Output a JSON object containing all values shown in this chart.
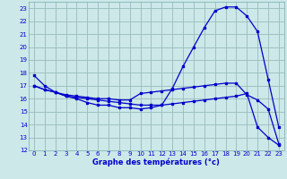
{
  "xlabel": "Graphe des températures (°c)",
  "bg_color": "#cce8e8",
  "line_color": "#0000cc",
  "grid_color": "#99bbbb",
  "xlim": [
    -0.5,
    23.5
  ],
  "ylim": [
    12,
    23.5
  ],
  "xticks": [
    0,
    1,
    2,
    3,
    4,
    5,
    6,
    7,
    8,
    9,
    10,
    11,
    12,
    13,
    14,
    15,
    16,
    17,
    18,
    19,
    20,
    21,
    22,
    23
  ],
  "yticks": [
    12,
    13,
    14,
    15,
    16,
    17,
    18,
    19,
    20,
    21,
    22,
    23
  ],
  "line1_x": [
    0,
    1,
    2,
    3,
    4,
    5,
    6,
    7,
    8,
    9,
    10,
    11,
    12,
    13,
    14,
    15,
    16,
    17,
    18,
    19,
    20,
    21,
    22,
    23
  ],
  "line1_y": [
    17.8,
    17.0,
    16.5,
    16.2,
    16.0,
    15.7,
    15.5,
    15.5,
    15.3,
    15.3,
    15.2,
    15.3,
    15.5,
    16.8,
    18.5,
    20.0,
    21.5,
    22.8,
    23.1,
    23.1,
    22.4,
    21.2,
    17.5,
    13.8
  ],
  "line2_x": [
    0,
    1,
    2,
    3,
    4,
    5,
    6,
    7,
    8,
    9,
    10,
    11,
    12,
    13,
    14,
    15,
    16,
    17,
    18,
    19,
    20,
    21,
    22,
    23
  ],
  "line2_y": [
    17.0,
    16.7,
    16.5,
    16.3,
    16.2,
    16.1,
    16.0,
    16.0,
    15.9,
    15.9,
    16.4,
    16.5,
    16.6,
    16.7,
    16.8,
    16.9,
    17.0,
    17.1,
    17.2,
    17.2,
    16.3,
    15.9,
    15.2,
    12.5
  ],
  "line3_x": [
    0,
    1,
    2,
    3,
    4,
    5,
    6,
    7,
    8,
    9,
    10,
    11,
    12,
    13,
    14,
    15,
    16,
    17,
    18,
    19,
    20,
    21,
    22,
    23
  ],
  "line3_y": [
    17.0,
    16.7,
    16.5,
    16.2,
    16.1,
    16.0,
    15.9,
    15.8,
    15.7,
    15.6,
    15.5,
    15.5,
    15.5,
    15.6,
    15.7,
    15.8,
    15.9,
    16.0,
    16.1,
    16.2,
    16.4,
    13.8,
    13.0,
    12.4
  ]
}
